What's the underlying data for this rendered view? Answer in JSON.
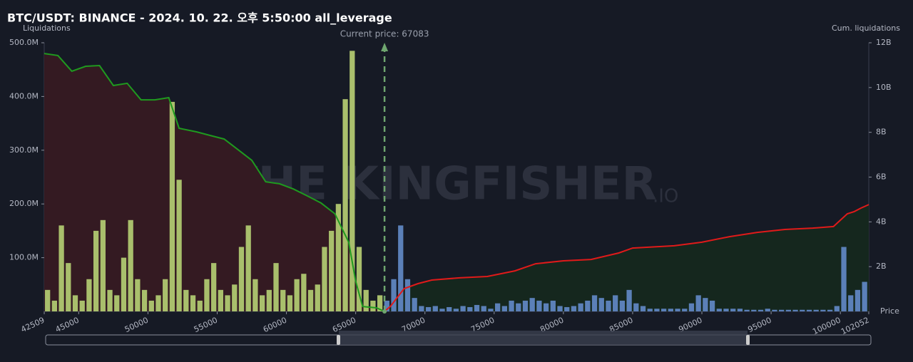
{
  "chart_data": {
    "type": "bar",
    "title": "BTC/USDT: BINANCE - 2024. 10. 22. 오후 5:50:00 all_leverage",
    "y_label": "Liquidations",
    "y2_label": "Cum. liquidations",
    "x_label": "Price",
    "watermark": "THE KINGFISHER",
    "watermark_suffix": ".IO",
    "current_price": {
      "value": 67083,
      "label": "Current price: 67083"
    },
    "background": "#161a25",
    "xlim": [
      42509,
      102052
    ],
    "xticks": [
      42509,
      45000,
      50000,
      55000,
      60000,
      65000,
      70000,
      75000,
      80000,
      85000,
      90000,
      95000,
      100000,
      102052
    ],
    "ylim": [
      0,
      500000000
    ],
    "yticks": [
      {
        "value": 100000000,
        "label": "100.0M"
      },
      {
        "value": 200000000,
        "label": "200.0M"
      },
      {
        "value": 300000000,
        "label": "300.0M"
      },
      {
        "value": 400000000,
        "label": "400.0M"
      },
      {
        "value": 500000000,
        "label": "500.0M"
      }
    ],
    "y2lim": [
      0,
      12000000000
    ],
    "y2ticks": [
      {
        "value": 2000000000,
        "label": "2B"
      },
      {
        "value": 4000000000,
        "label": "4B"
      },
      {
        "value": 6000000000,
        "label": "6B"
      },
      {
        "value": 8000000000,
        "label": "8B"
      },
      {
        "value": 10000000000,
        "label": "10B"
      },
      {
        "value": 12000000000,
        "label": "12B"
      }
    ],
    "series": [
      {
        "type": "bar",
        "color": "#a9bf6c",
        "bar_width": 500,
        "x": [
          42750,
          43250,
          43750,
          44250,
          44750,
          45250,
          45750,
          46250,
          46750,
          47250,
          47750,
          48250,
          48750,
          49250,
          49750,
          50250,
          50750,
          51250,
          51750,
          52250,
          52750,
          53250,
          53750,
          54250,
          54750,
          55250,
          55750,
          56250,
          56750,
          57250,
          57750,
          58250,
          58750,
          59250,
          59750,
          60250,
          60750,
          61250,
          61750,
          62250,
          62750,
          63250,
          63750,
          64250,
          64750,
          65250,
          65750,
          66250,
          66750
        ],
        "values": [
          40000000,
          20000000,
          160000000,
          90000000,
          30000000,
          20000000,
          60000000,
          150000000,
          170000000,
          40000000,
          30000000,
          100000000,
          170000000,
          60000000,
          40000000,
          20000000,
          30000000,
          60000000,
          390000000,
          245000000,
          40000000,
          30000000,
          20000000,
          60000000,
          90000000,
          40000000,
          30000000,
          50000000,
          120000000,
          160000000,
          60000000,
          30000000,
          40000000,
          90000000,
          40000000,
          30000000,
          60000000,
          70000000,
          40000000,
          50000000,
          120000000,
          150000000,
          200000000,
          395000000,
          485000000,
          120000000,
          40000000,
          20000000,
          30000000
        ]
      },
      {
        "type": "bar",
        "color": "#5b80b8",
        "bar_width": 500,
        "x": [
          67250,
          67750,
          68250,
          68750,
          69250,
          69750,
          70250,
          70750,
          71250,
          71750,
          72250,
          72750,
          73250,
          73750,
          74250,
          74750,
          75250,
          75750,
          76250,
          76750,
          77250,
          77750,
          78250,
          78750,
          79250,
          79750,
          80250,
          80750,
          81250,
          81750,
          82250,
          82750,
          83250,
          83750,
          84250,
          84750,
          85250,
          85750,
          86250,
          86750,
          87250,
          87750,
          88250,
          88750,
          89250,
          89750,
          90250,
          90750,
          91250,
          91750,
          92250,
          92750,
          93250,
          93750,
          94250,
          94750,
          95250,
          95750,
          96250,
          96750,
          97250,
          97750,
          98250,
          98750,
          99250,
          99750,
          100250,
          100750,
          101250,
          101750
        ],
        "values": [
          20000000,
          60000000,
          160000000,
          60000000,
          25000000,
          10000000,
          8000000,
          10000000,
          5000000,
          8000000,
          5000000,
          10000000,
          8000000,
          12000000,
          10000000,
          5000000,
          15000000,
          10000000,
          20000000,
          15000000,
          20000000,
          25000000,
          20000000,
          15000000,
          20000000,
          10000000,
          8000000,
          10000000,
          15000000,
          20000000,
          30000000,
          25000000,
          20000000,
          30000000,
          20000000,
          40000000,
          15000000,
          10000000,
          5000000,
          5000000,
          5000000,
          5000000,
          5000000,
          5000000,
          15000000,
          30000000,
          25000000,
          20000000,
          5000000,
          5000000,
          5000000,
          5000000,
          3000000,
          3000000,
          3000000,
          5000000,
          3000000,
          3000000,
          3000000,
          3000000,
          3000000,
          3000000,
          3000000,
          3000000,
          3000000,
          10000000,
          120000000,
          30000000,
          40000000,
          55000000
        ]
      },
      {
        "type": "line",
        "axis": "y2",
        "color": "#1f9a1f",
        "area_color": "#341a22",
        "x": [
          42509,
          43500,
          44500,
          45500,
          46500,
          47500,
          48500,
          49500,
          50500,
          51500,
          52250,
          53500,
          54500,
          55500,
          56500,
          57500,
          58500,
          59500,
          60500,
          61500,
          62500,
          63500,
          64500,
          65000,
          65500,
          66500,
          67083
        ],
        "values": [
          11520000000,
          11430000000,
          10730000000,
          10950000000,
          10980000000,
          10090000000,
          10190000000,
          9450000000,
          9450000000,
          9550000000,
          8180000000,
          8020000000,
          7860000000,
          7700000000,
          7230000000,
          6750000000,
          5790000000,
          5700000000,
          5470000000,
          5160000000,
          4840000000,
          4360000000,
          3090000000,
          1340000000,
          220000000,
          160000000,
          0
        ]
      },
      {
        "type": "line",
        "axis": "y2",
        "color": "#e01a1a",
        "area_color": "#15271e",
        "x": [
          67083,
          67500,
          68500,
          69500,
          70500,
          72500,
          74500,
          76500,
          78000,
          80000,
          82000,
          84000,
          85000,
          88000,
          90000,
          92000,
          94000,
          96000,
          98000,
          99500,
          100500,
          101000,
          101500,
          102052
        ],
        "values": [
          0,
          220000000,
          1020000000,
          1240000000,
          1400000000,
          1500000000,
          1560000000,
          1810000000,
          2130000000,
          2260000000,
          2320000000,
          2610000000,
          2830000000,
          2930000000,
          3090000000,
          3340000000,
          3530000000,
          3660000000,
          3720000000,
          3790000000,
          4360000000,
          4460000000,
          4620000000,
          4770000000
        ]
      }
    ]
  }
}
